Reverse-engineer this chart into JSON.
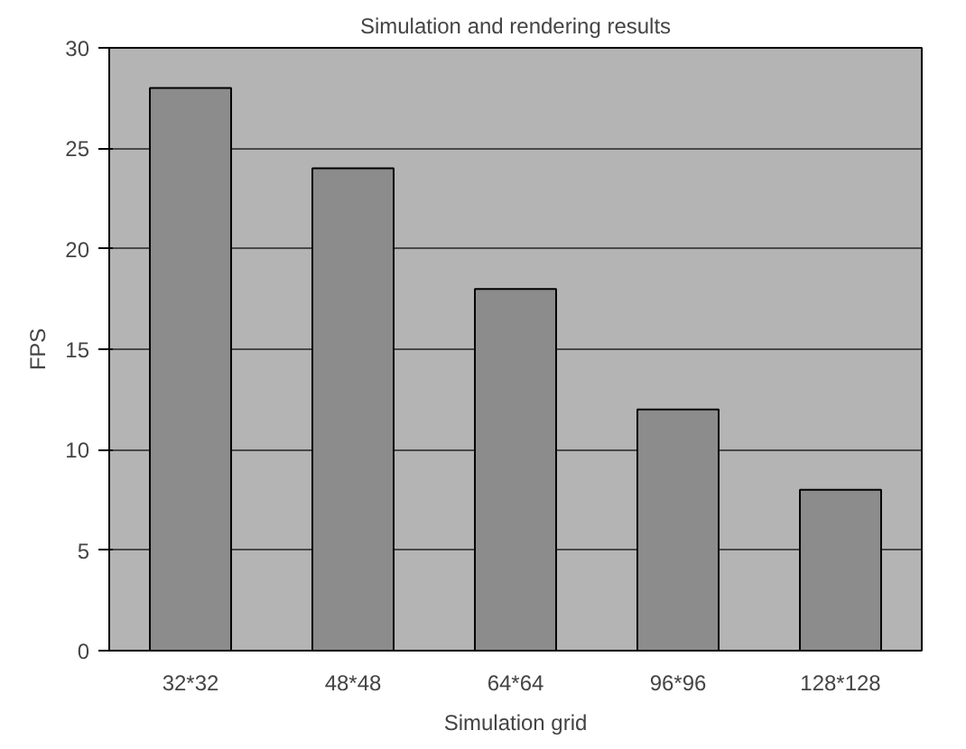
{
  "chart_data": {
    "type": "bar",
    "title": "Simulation and rendering results",
    "xlabel": "Simulation grid",
    "ylabel": "FPS",
    "categories": [
      "32*32",
      "48*48",
      "64*64",
      "96*96",
      "128*128"
    ],
    "values": [
      28,
      24,
      18,
      12,
      8
    ],
    "color": "#8c8c8c",
    "ylim": [
      0,
      30
    ],
    "yticks": [
      0,
      5,
      10,
      15,
      20,
      25,
      30
    ],
    "grid": "y"
  }
}
